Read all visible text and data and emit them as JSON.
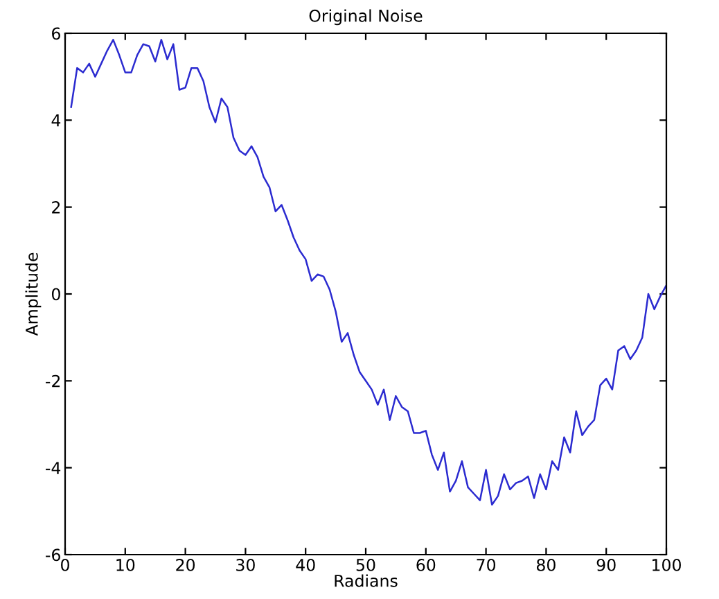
{
  "chart_data": {
    "type": "line",
    "title": "Original Noise",
    "xlabel": "Radians",
    "ylabel": "Amplitude",
    "x": [
      1,
      2,
      3,
      4,
      5,
      6,
      7,
      8,
      9,
      10,
      11,
      12,
      13,
      14,
      15,
      16,
      17,
      18,
      19,
      20,
      21,
      22,
      23,
      24,
      25,
      26,
      27,
      28,
      29,
      30,
      31,
      32,
      33,
      34,
      35,
      36,
      37,
      38,
      39,
      40,
      41,
      42,
      43,
      44,
      45,
      46,
      47,
      48,
      49,
      50,
      51,
      52,
      53,
      54,
      55,
      56,
      57,
      58,
      59,
      60,
      61,
      62,
      63,
      64,
      65,
      66,
      67,
      68,
      69,
      70,
      71,
      72,
      73,
      74,
      75,
      76,
      77,
      78,
      79,
      80,
      81,
      82,
      83,
      84,
      85,
      86,
      87,
      88,
      89,
      90,
      91,
      92,
      93,
      94,
      95,
      96,
      97,
      98,
      99,
      100
    ],
    "series": [
      {
        "color": "#2b2bd0",
        "values": [
          4.3,
          5.2,
          5.1,
          5.3,
          5.0,
          5.3,
          5.6,
          5.85,
          5.5,
          5.1,
          5.1,
          5.5,
          5.75,
          5.7,
          5.35,
          5.85,
          5.4,
          5.75,
          4.7,
          4.75,
          5.2,
          5.2,
          4.9,
          4.3,
          3.95,
          4.5,
          4.3,
          3.6,
          3.3,
          3.2,
          3.4,
          3.15,
          2.7,
          2.45,
          1.9,
          2.05,
          1.7,
          1.3,
          1.0,
          0.8,
          0.3,
          0.45,
          0.4,
          0.1,
          -0.4,
          -1.1,
          -0.9,
          -1.4,
          -1.8,
          -2.0,
          -2.2,
          -2.55,
          -2.2,
          -2.9,
          -2.35,
          -2.6,
          -2.7,
          -3.2,
          -3.2,
          -3.15,
          -3.7,
          -4.05,
          -3.65,
          -4.55,
          -4.3,
          -3.85,
          -4.45,
          -4.6,
          -4.75,
          -4.05,
          -4.85,
          -4.65,
          -4.15,
          -4.5,
          -4.35,
          -4.3,
          -4.2,
          -4.7,
          -4.15,
          -4.5,
          -3.85,
          -4.05,
          -3.3,
          -3.65,
          -2.7,
          -3.25,
          -3.05,
          -2.9,
          -2.1,
          -1.95,
          -2.2,
          -1.3,
          -1.2,
          -1.5,
          -1.3,
          -1.0,
          0.0,
          -0.35,
          -0.05,
          0.2
        ]
      }
    ],
    "xlim": [
      0,
      100
    ],
    "xticks": [
      0,
      10,
      20,
      30,
      40,
      50,
      60,
      70,
      80,
      90,
      100
    ],
    "ylim": [
      -6,
      6
    ],
    "yticks": [
      -6,
      -4,
      -2,
      0,
      2,
      4,
      6
    ],
    "grid": false,
    "legend": false,
    "marker": "none",
    "line_style": "solid"
  }
}
